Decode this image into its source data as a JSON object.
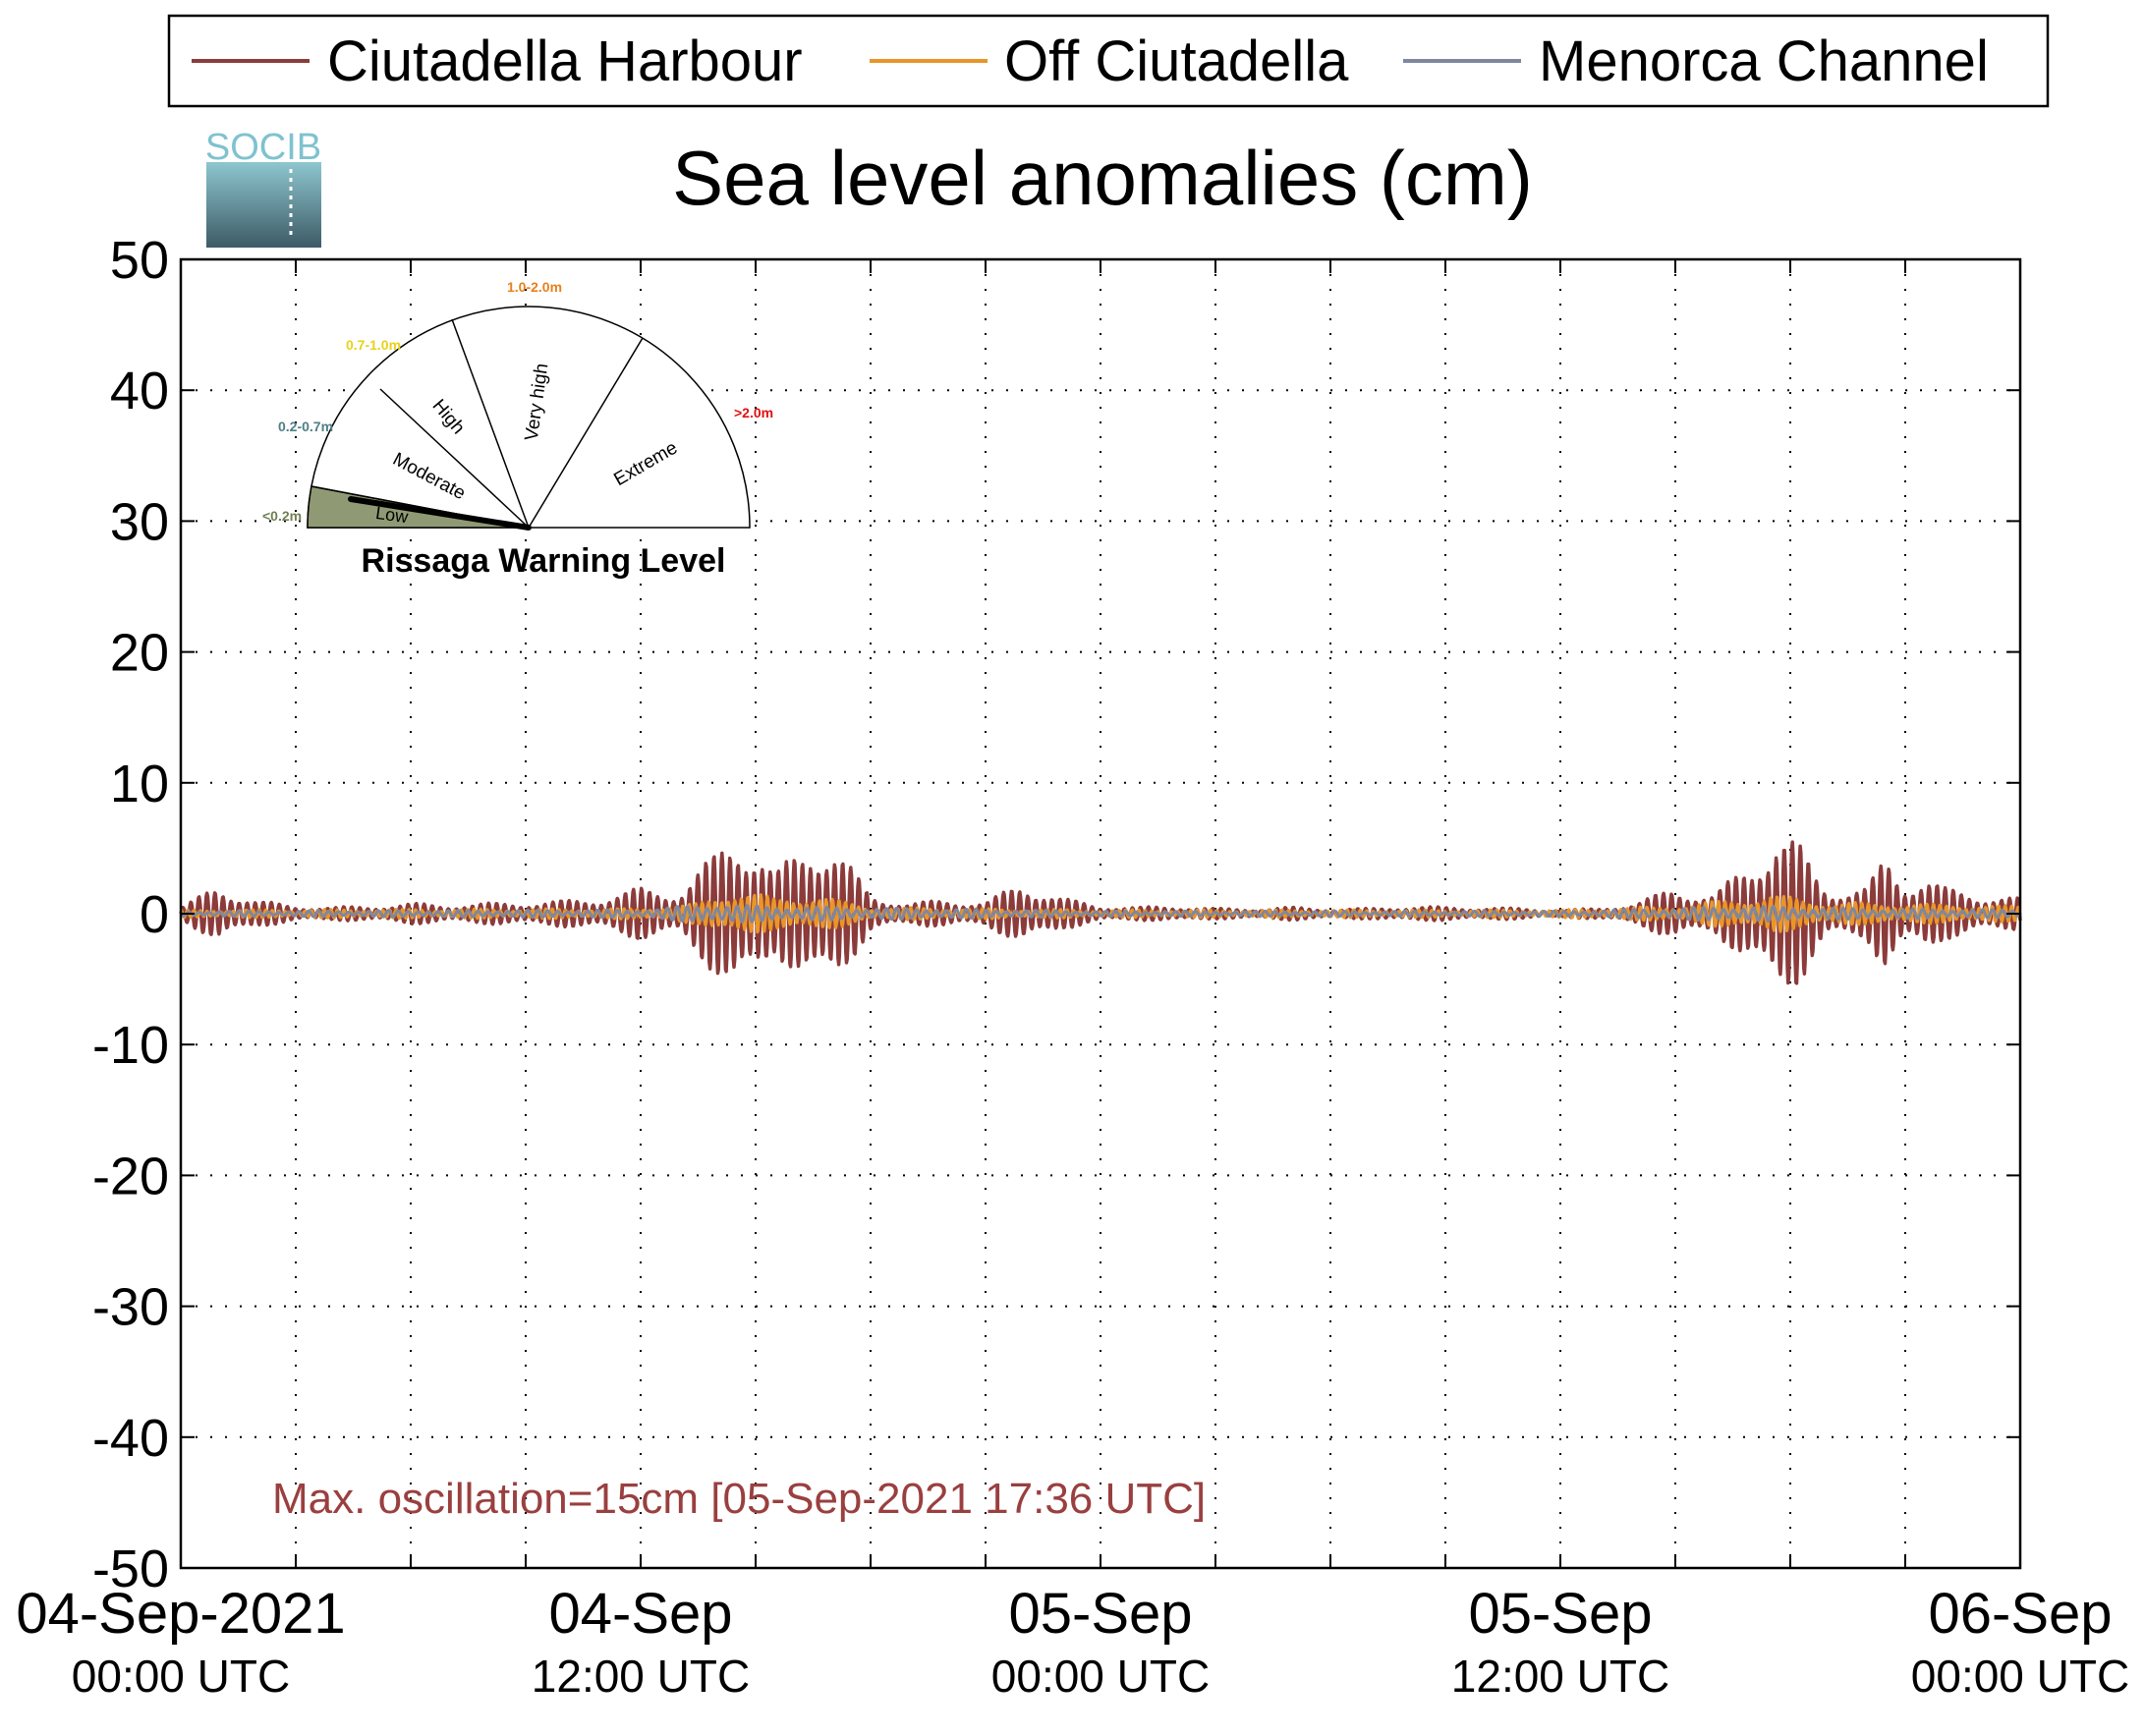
{
  "logo": {
    "text": "SOCIB"
  },
  "legend": {
    "items": [
      {
        "label": "Ciutadella Harbour",
        "color": "#8c3b3b"
      },
      {
        "label": "Off Ciutadella",
        "color": "#e8962a"
      },
      {
        "label": "Menorca Channel",
        "color": "#7f879f"
      }
    ]
  },
  "gauge": {
    "title": "Rissaga Warning Level",
    "levels": [
      {
        "name": "Low",
        "range": "<0.2m",
        "range_color": "#6f7f52",
        "active": true
      },
      {
        "name": "Moderate",
        "range": "0.2-0.7m",
        "range_color": "#4f7f86",
        "active": false
      },
      {
        "name": "High",
        "range": "0.7-1.0m",
        "range_color": "#e8d21a",
        "active": false
      },
      {
        "name": "Very high",
        "range": "1.0-2.0m",
        "range_color": "#e8801a",
        "active": false
      },
      {
        "name": "Extreme",
        "range": ">2.0m",
        "range_color": "#e01010",
        "active": false
      }
    ],
    "fill_color": "#8f9a75"
  },
  "annotation": {
    "text": "Max. oscillation=15cm [05-Sep-2021 17:36 UTC]",
    "color": "#9a3f3f"
  },
  "chart_data": {
    "type": "line",
    "title": "Sea level anomalies (cm)",
    "ylim": [
      -50,
      50
    ],
    "yticks": [
      50,
      40,
      30,
      20,
      10,
      0,
      -10,
      -20,
      -30,
      -40,
      -50
    ],
    "xlim_hours": [
      0,
      48
    ],
    "x_minor_step_hours": 3,
    "xticks": [
      {
        "hours": 0,
        "date": "04-Sep-2021",
        "time": "00:00 UTC"
      },
      {
        "hours": 12,
        "date": "04-Sep",
        "time": "12:00 UTC"
      },
      {
        "hours": 24,
        "date": "05-Sep",
        "time": "00:00 UTC"
      },
      {
        "hours": 36,
        "date": "05-Sep",
        "time": "12:00 UTC"
      },
      {
        "hours": 48,
        "date": "06-Sep",
        "time": "00:00 UTC"
      }
    ],
    "grid": true,
    "legend_position": "top",
    "series": [
      {
        "name": "Ciutadella Harbour",
        "color": "#8c3b3b",
        "envelope": [
          [
            0,
            0.5
          ],
          [
            1,
            2.2
          ],
          [
            2,
            1.0
          ],
          [
            3,
            0.6
          ],
          [
            4,
            0.5
          ],
          [
            5,
            0.6
          ],
          [
            6,
            0.8
          ],
          [
            7,
            0.7
          ],
          [
            8,
            0.8
          ],
          [
            9,
            0.9
          ],
          [
            10,
            1.0
          ],
          [
            11,
            1.3
          ],
          [
            12,
            2.0
          ],
          [
            13,
            1.8
          ],
          [
            13.9,
            4.5
          ],
          [
            14.5,
            7.0
          ],
          [
            15,
            5.5
          ],
          [
            15.5,
            3.0
          ],
          [
            16.5,
            6.5
          ],
          [
            17,
            5.5
          ],
          [
            17.5,
            3.5
          ],
          [
            18,
            1.5
          ],
          [
            19,
            0.8
          ],
          [
            20,
            1.1
          ],
          [
            21,
            0.9
          ],
          [
            22,
            2.5
          ],
          [
            23,
            1.2
          ],
          [
            24,
            0.6
          ],
          [
            25,
            0.5
          ],
          [
            26,
            0.6
          ],
          [
            27,
            0.4
          ],
          [
            28,
            0.4
          ],
          [
            29,
            0.5
          ],
          [
            30,
            0.4
          ],
          [
            31,
            0.4
          ],
          [
            32,
            0.6
          ],
          [
            33,
            0.5
          ],
          [
            34,
            0.5
          ],
          [
            35,
            0.4
          ],
          [
            36,
            0.3
          ],
          [
            37,
            0.4
          ],
          [
            38,
            0.9
          ],
          [
            39,
            2.0
          ],
          [
            40,
            1.5
          ],
          [
            41,
            4.0
          ],
          [
            41.6,
            7.0
          ],
          [
            42.2,
            5.5
          ],
          [
            42.7,
            3.0
          ],
          [
            43,
            2.0
          ],
          [
            44,
            2.0
          ],
          [
            44.5,
            4.5
          ],
          [
            45,
            2.5
          ],
          [
            45.5,
            3.0
          ],
          [
            46,
            2.0
          ],
          [
            47,
            1.5
          ],
          [
            48,
            1.2
          ]
        ]
      },
      {
        "name": "Off Ciutadella",
        "color": "#e8962a",
        "envelope": [
          [
            0,
            0.3
          ],
          [
            12,
            0.4
          ],
          [
            13.5,
            0.8
          ],
          [
            14.5,
            2.0
          ],
          [
            15.5,
            1.2
          ],
          [
            16.5,
            1.5
          ],
          [
            18,
            0.5
          ],
          [
            24,
            0.3
          ],
          [
            36,
            0.3
          ],
          [
            39,
            0.6
          ],
          [
            41.5,
            1.5
          ],
          [
            43,
            0.9
          ],
          [
            45,
            0.8
          ],
          [
            48,
            0.6
          ]
        ]
      },
      {
        "name": "Menorca Channel",
        "color": "#7f879f",
        "envelope": [
          [
            0,
            0.2
          ],
          [
            12,
            0.3
          ],
          [
            14,
            0.8
          ],
          [
            15,
            0.6
          ],
          [
            17,
            0.5
          ],
          [
            24,
            0.2
          ],
          [
            36,
            0.2
          ],
          [
            41,
            0.6
          ],
          [
            44,
            0.4
          ],
          [
            48,
            0.3
          ]
        ]
      }
    ]
  }
}
